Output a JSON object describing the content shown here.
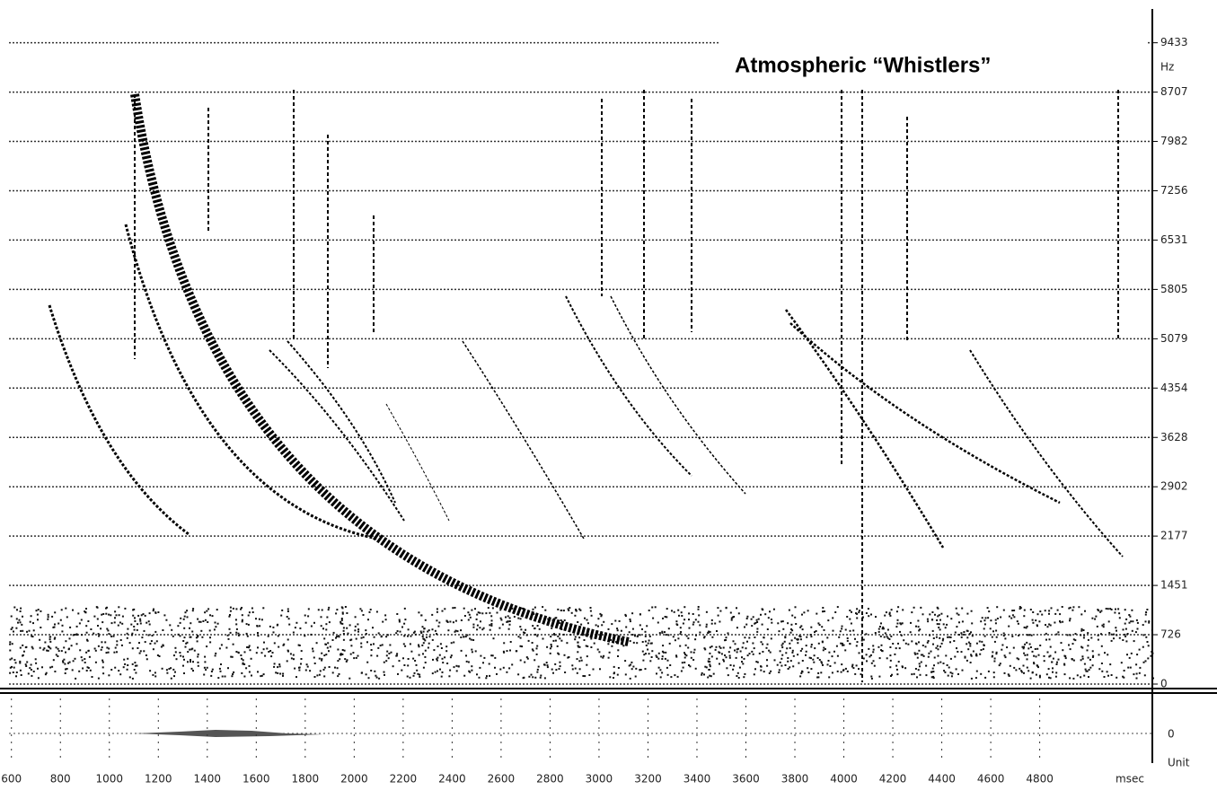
{
  "chart_data": {
    "type": "spectrogram",
    "title": "Atmospheric “Whistlers”",
    "y_label": "Hz",
    "x_label": "msec",
    "ylim": [
      0,
      9930
    ],
    "yticks": [
      0,
      726,
      1451,
      2177,
      2902,
      3628,
      4354,
      5079,
      5805,
      6531,
      7256,
      7982,
      8707,
      9433
    ],
    "xlim": [
      590,
      5260
    ],
    "xticks": [
      600,
      800,
      1000,
      1200,
      1400,
      1600,
      1800,
      2000,
      2200,
      2400,
      2600,
      2800,
      3000,
      3200,
      3400,
      3600,
      3800,
      4000,
      4200,
      4400,
      4600,
      4800
    ],
    "grid": true,
    "lower_panel": {
      "zero_label": "0",
      "unit_label": "Unit"
    }
  }
}
